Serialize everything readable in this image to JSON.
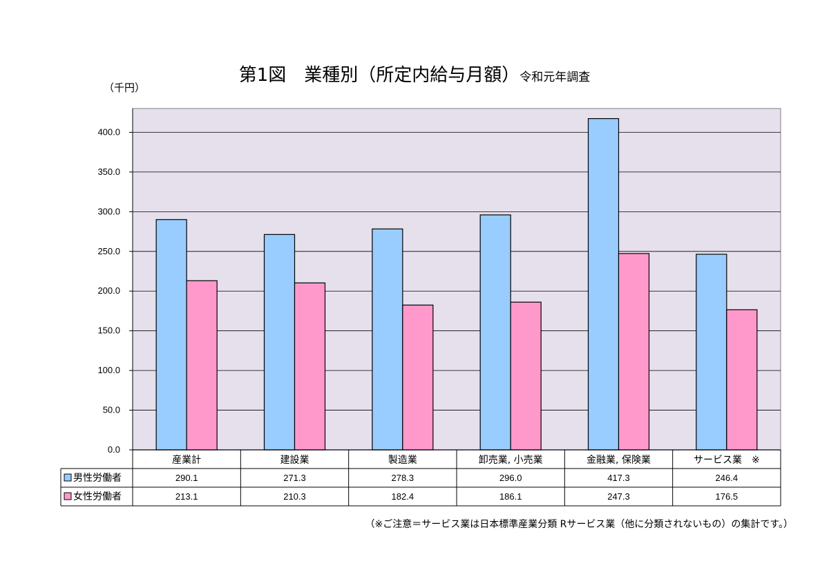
{
  "title": {
    "main": "第1図　業種別（所定内給与月額）",
    "sub": "令和元年調査"
  },
  "unit_label": "（千円）",
  "footnote": "（※ご注意＝サービス業は日本標準産業分類 Rサービス業（他に分類されないもの）の集計です。）",
  "colors": {
    "plot_background": "#E6E0EC",
    "male": "#99CCFF",
    "female": "#FF99CC",
    "grid": "#000000"
  },
  "chart_data": {
    "type": "bar",
    "categories": [
      "産業計",
      "建設業",
      "製造業",
      "卸売業, 小売業",
      "金融業, 保険業",
      "サービス業　※"
    ],
    "series": [
      {
        "name": "男性労働者",
        "values": [
          290.1,
          271.3,
          278.3,
          296.0,
          417.3,
          246.4
        ],
        "labels": [
          "290.1",
          "271.3",
          "278.3",
          "296.0",
          "417.3",
          "246.4"
        ]
      },
      {
        "name": "女性労働者",
        "values": [
          213.1,
          210.3,
          182.4,
          186.1,
          247.3,
          176.5
        ],
        "labels": [
          "213.1",
          "210.3",
          "182.4",
          "186.1",
          "247.3",
          "176.5"
        ]
      }
    ],
    "ylim": [
      0,
      430
    ],
    "yticks": [
      0,
      50,
      100,
      150,
      200,
      250,
      300,
      350,
      400
    ],
    "ytick_labels": [
      "0.0",
      "50.0",
      "100.0",
      "150.0",
      "200.0",
      "250.0",
      "300.0",
      "350.0",
      "400.0"
    ],
    "grid": true,
    "legend": "data-table"
  }
}
